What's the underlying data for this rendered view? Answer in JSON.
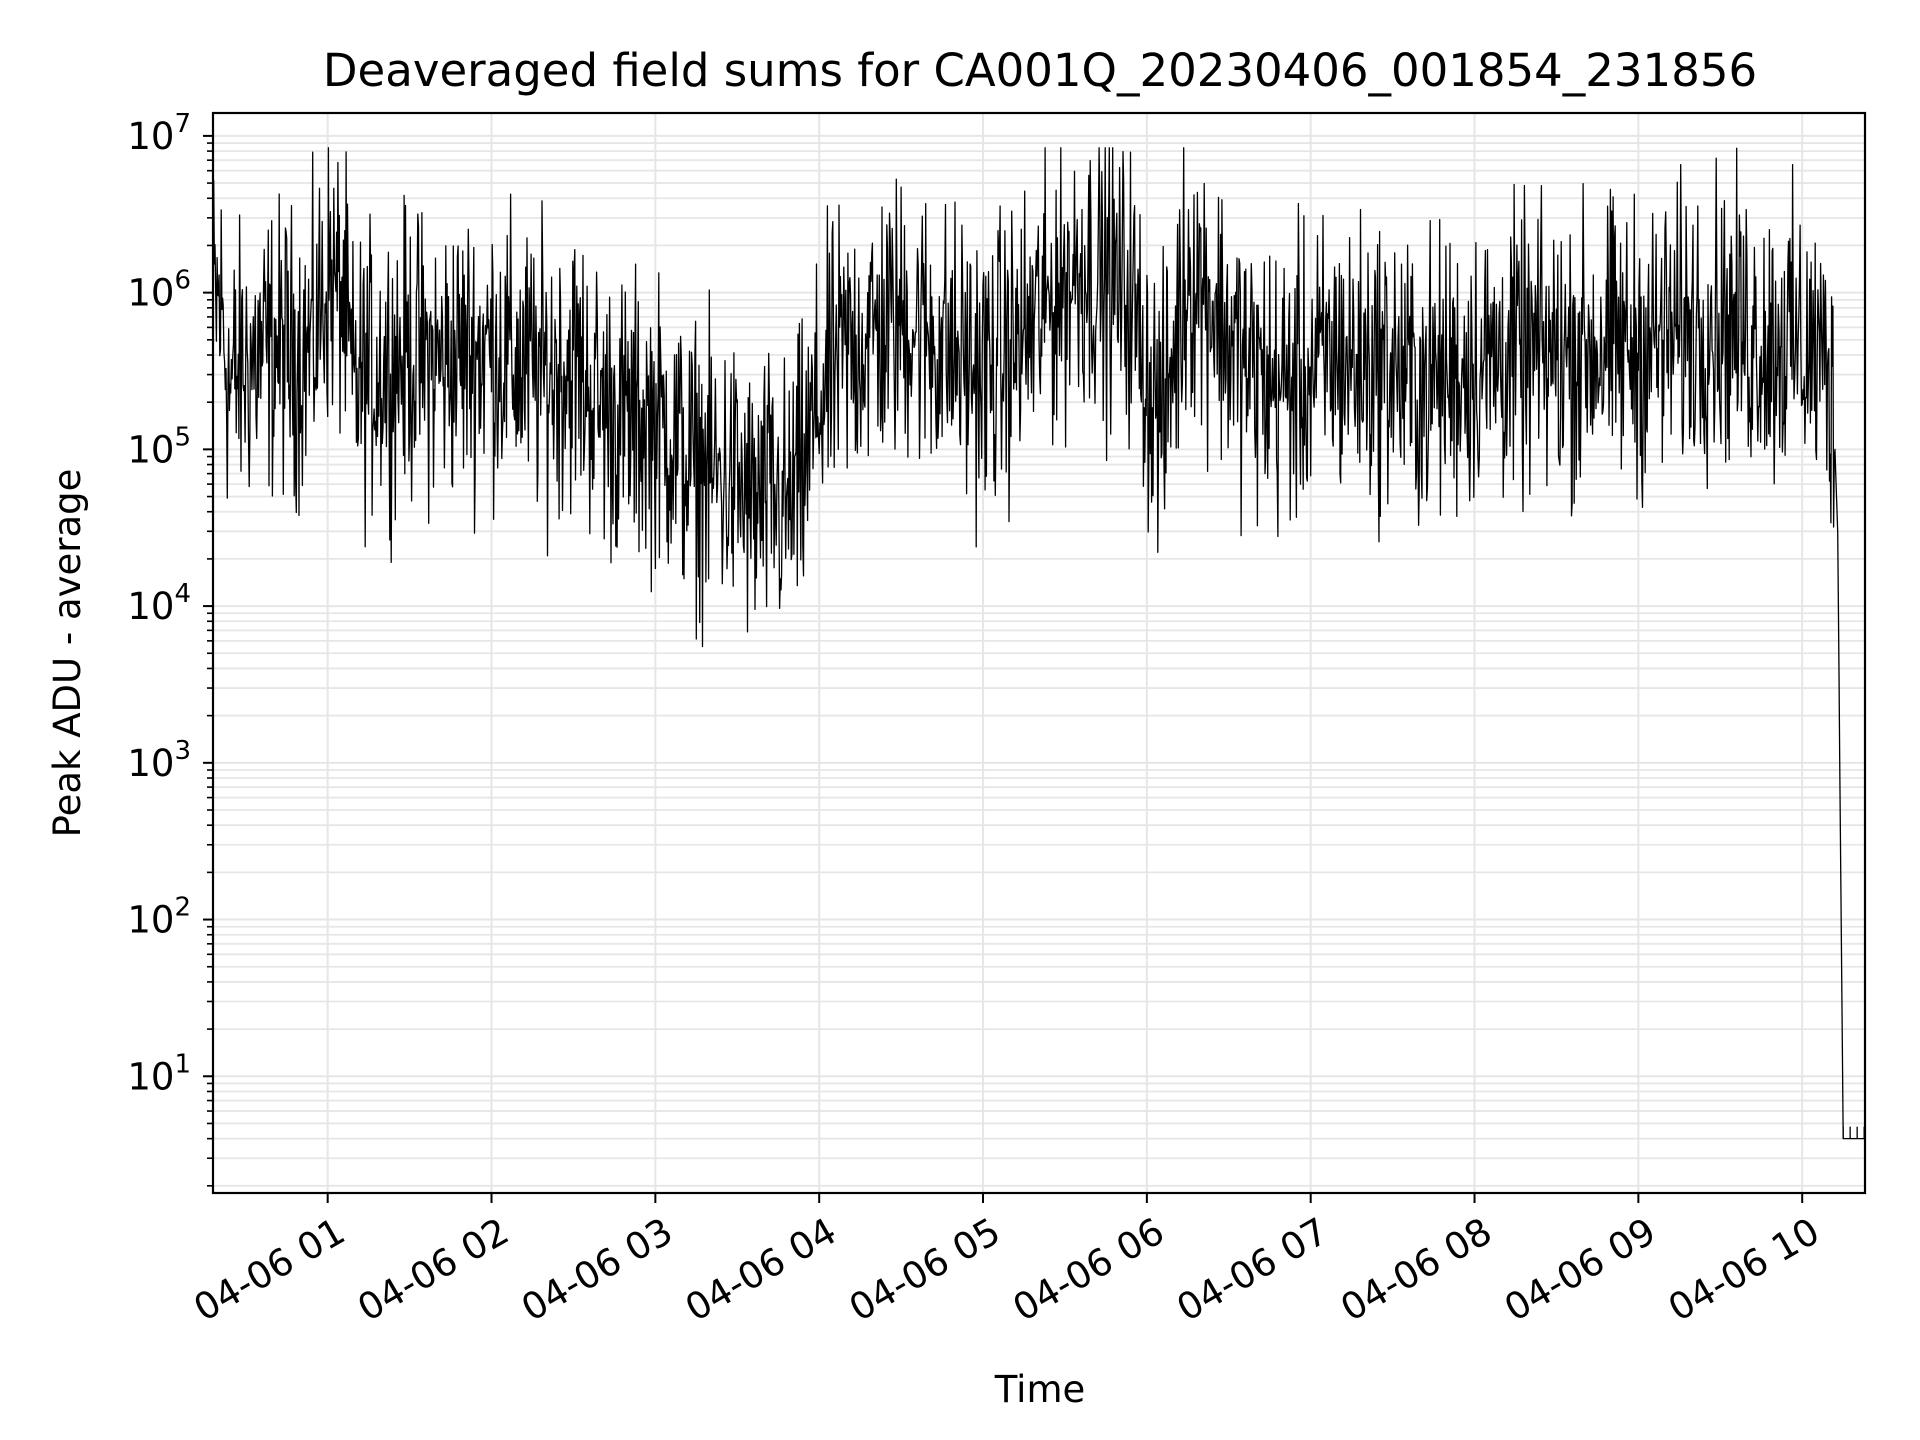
{
  "chart_data": {
    "type": "line",
    "title": "Deaveraged field sums for CA001Q_20230406_001854_231856",
    "xlabel": "Time",
    "ylabel": "Peak ADU - average",
    "yscale": "log",
    "ylim": [
      1.8,
      14000000
    ],
    "xlim": [
      "04-06 00:18",
      "04-06 10:23"
    ],
    "grid": true,
    "line_color": "#000000",
    "grid_color": "#e6e6e6",
    "x_ticks": [
      {
        "t": "04-06 01:00",
        "label": "04-06 01"
      },
      {
        "t": "04-06 02:00",
        "label": "04-06 02"
      },
      {
        "t": "04-06 03:00",
        "label": "04-06 03"
      },
      {
        "t": "04-06 04:00",
        "label": "04-06 04"
      },
      {
        "t": "04-06 05:00",
        "label": "04-06 05"
      },
      {
        "t": "04-06 06:00",
        "label": "04-06 06"
      },
      {
        "t": "04-06 07:00",
        "label": "04-06 07"
      },
      {
        "t": "04-06 08:00",
        "label": "04-06 08"
      },
      {
        "t": "04-06 09:00",
        "label": "04-06 09"
      },
      {
        "t": "04-06 10:00",
        "label": "04-06 10"
      }
    ],
    "y_ticks": [
      {
        "value": 10,
        "base": "10",
        "exp": "1"
      },
      {
        "value": 100,
        "base": "10",
        "exp": "2"
      },
      {
        "value": 1000,
        "base": "10",
        "exp": "3"
      },
      {
        "value": 10000,
        "base": "10",
        "exp": "4"
      },
      {
        "value": 100000,
        "base": "10",
        "exp": "5"
      },
      {
        "value": 1000000,
        "base": "10",
        "exp": "6"
      },
      {
        "value": 10000000,
        "base": "10",
        "exp": "7"
      }
    ],
    "series": [
      {
        "points": [
          [
            "04-06 00:18",
            900000
          ],
          [
            "04-06 00:21",
            800000
          ],
          [
            "04-06 00:24",
            250000
          ],
          [
            "04-06 00:30",
            350000
          ],
          [
            "04-06 00:36",
            400000
          ],
          [
            "04-06 00:42",
            450000
          ],
          [
            "04-06 00:48",
            400000
          ],
          [
            "04-06 00:54",
            450000
          ],
          [
            "04-06 01:00",
            1200000
          ],
          [
            "04-06 01:06",
            900000
          ],
          [
            "04-06 01:09",
            250000
          ],
          [
            "04-06 01:15",
            300000
          ],
          [
            "04-06 01:21",
            350000
          ],
          [
            "04-06 01:30",
            400000
          ],
          [
            "04-06 01:39",
            350000
          ],
          [
            "04-06 01:48",
            400000
          ],
          [
            "04-06 02:00",
            450000
          ],
          [
            "04-06 02:09",
            350000
          ],
          [
            "04-06 02:18",
            300000
          ],
          [
            "04-06 02:30",
            350000
          ],
          [
            "04-06 02:39",
            200000
          ],
          [
            "04-06 02:48",
            150000
          ],
          [
            "04-06 03:00",
            150000
          ],
          [
            "04-06 03:06",
            120000
          ],
          [
            "04-06 03:12",
            80000
          ],
          [
            "04-06 03:21",
            70000
          ],
          [
            "04-06 03:30",
            60000
          ],
          [
            "04-06 03:36",
            40000
          ],
          [
            "04-06 03:42",
            50000
          ],
          [
            "04-06 03:48",
            40000
          ],
          [
            "04-06 03:54",
            70000
          ],
          [
            "04-06 04:00",
            200000
          ],
          [
            "04-06 04:06",
            350000
          ],
          [
            "04-06 04:15",
            500000
          ],
          [
            "04-06 04:24",
            600000
          ],
          [
            "04-06 04:33",
            700000
          ],
          [
            "04-06 04:42",
            500000
          ],
          [
            "04-06 04:51",
            400000
          ],
          [
            "04-06 05:00",
            300000
          ],
          [
            "04-06 05:09",
            400000
          ],
          [
            "04-06 05:18",
            600000
          ],
          [
            "04-06 05:27",
            1000000
          ],
          [
            "04-06 05:36",
            1500000
          ],
          [
            "04-06 05:45",
            1200000
          ],
          [
            "04-06 05:54",
            1000000
          ],
          [
            "04-06 06:00",
            300000
          ],
          [
            "04-06 06:06",
            150000
          ],
          [
            "04-06 06:15",
            1500000
          ],
          [
            "04-06 06:24",
            900000
          ],
          [
            "04-06 06:30",
            500000
          ],
          [
            "04-06 06:39",
            300000
          ],
          [
            "04-06 06:48",
            250000
          ],
          [
            "04-06 07:00",
            300000
          ],
          [
            "04-06 07:09",
            400000
          ],
          [
            "04-06 07:18",
            350000
          ],
          [
            "04-06 07:30",
            350000
          ],
          [
            "04-06 07:39",
            250000
          ],
          [
            "04-06 07:48",
            300000
          ],
          [
            "04-06 08:00",
            350000
          ],
          [
            "04-06 08:15",
            400000
          ],
          [
            "04-06 08:30",
            400000
          ],
          [
            "04-06 08:45",
            450000
          ],
          [
            "04-06 09:00",
            450000
          ],
          [
            "04-06 09:09",
            500000
          ],
          [
            "04-06 09:18",
            600000
          ],
          [
            "04-06 09:27",
            700000
          ],
          [
            "04-06 09:36",
            600000
          ],
          [
            "04-06 09:45",
            500000
          ],
          [
            "04-06 09:54",
            500000
          ],
          [
            "04-06 10:00",
            450000
          ],
          [
            "04-06 10:06",
            400000
          ],
          [
            "04-06 10:10",
            300000
          ],
          [
            "04-06 10:12",
            100000
          ],
          [
            "04-06 10:13",
            30000
          ],
          [
            "04-06 10:15",
            4
          ],
          [
            "04-06 10:23",
            4
          ]
        ]
      }
    ]
  }
}
